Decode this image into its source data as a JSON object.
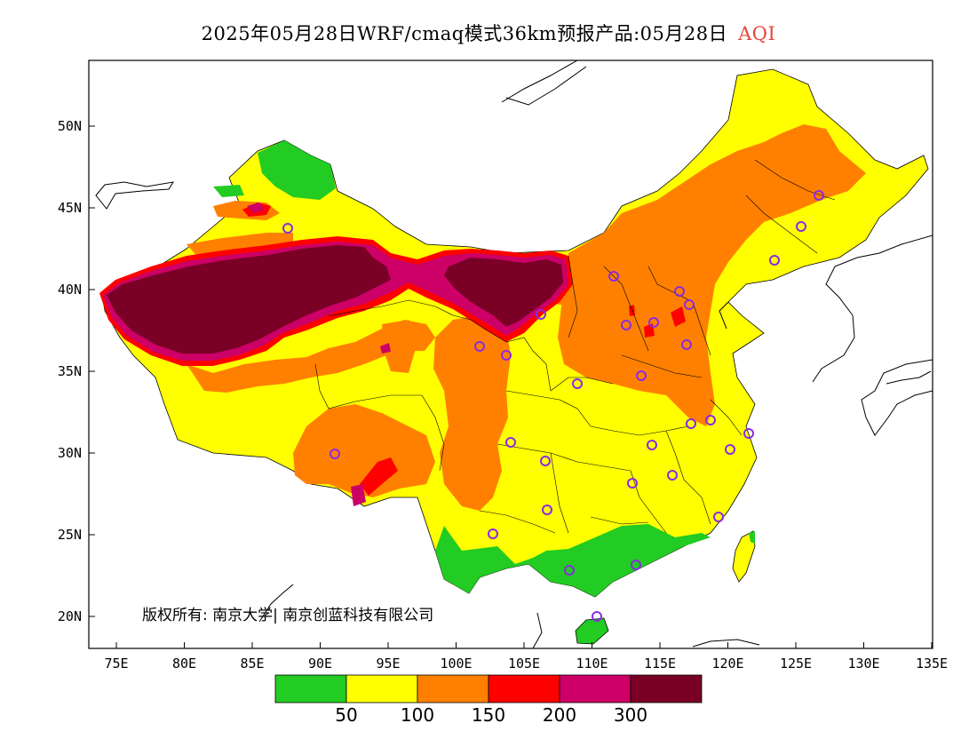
{
  "title": {
    "text": "2025年05月28日WRF/cmaq模式36km预报产品:05月28日",
    "highlight": "AQI",
    "highlight_color": "#e8443a"
  },
  "map": {
    "lat_ticks": [
      "20N",
      "25N",
      "30N",
      "35N",
      "40N",
      "45N",
      "50N"
    ],
    "lon_ticks": [
      "75E",
      "80E",
      "85E",
      "90E",
      "95E",
      "100E",
      "105E",
      "110E",
      "115E",
      "120E",
      "125E",
      "130E",
      "135E"
    ],
    "copyright": "版权所有: 南京大学| 南京创蓝科技有限公司"
  },
  "legend": {
    "colors": [
      "#22cc22",
      "#ffff00",
      "#ff8000",
      "#ff0000",
      "#cc0066",
      "#7a0026"
    ],
    "labels": [
      "50",
      "100",
      "150",
      "200",
      "300"
    ]
  }
}
